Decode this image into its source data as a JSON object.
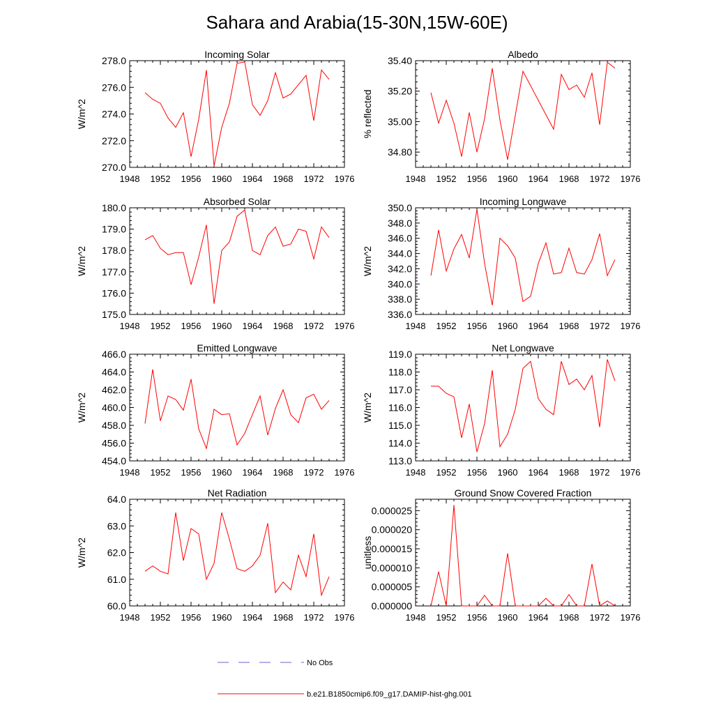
{
  "figure_title": "Sahara and Arabia(15-30N,15W-60E)",
  "legend": {
    "entries": [
      {
        "label": "No Obs",
        "color": "#6666cc",
        "dashed": true
      },
      {
        "label": "b.e21.B1850cmip6.f09_g17.DAMIP-hist-ghg.001",
        "color": "#ff0000",
        "dashed": false
      }
    ]
  },
  "colors": {
    "series": "#ff0000",
    "axis": "#000000",
    "no_obs": "#6666cc"
  },
  "chart_data": [
    {
      "type": "line",
      "title": "Incoming Solar",
      "xlabel": "",
      "ylabel": "W/m^2",
      "xlim": [
        1948,
        1976
      ],
      "ylim": [
        270.0,
        278.0
      ],
      "xticks": [
        1948,
        1952,
        1956,
        1960,
        1964,
        1968,
        1972,
        1976
      ],
      "yticks": [
        270.0,
        272.0,
        274.0,
        276.0,
        278.0
      ],
      "decimals": 1,
      "x": [
        1950,
        1951,
        1952,
        1953,
        1954,
        1955,
        1956,
        1957,
        1958,
        1959,
        1960,
        1961,
        1962,
        1963,
        1964,
        1965,
        1966,
        1967,
        1968,
        1969,
        1970,
        1971,
        1972,
        1973,
        1974
      ],
      "series": [
        {
          "values": [
            275.6,
            275.1,
            274.8,
            273.7,
            273.0,
            274.1,
            270.8,
            273.6,
            277.3,
            270.1,
            273.0,
            274.8,
            277.8,
            277.9,
            274.7,
            273.9,
            275.0,
            277.1,
            275.2,
            275.5,
            276.2,
            276.9,
            273.5,
            277.3,
            276.6
          ]
        }
      ]
    },
    {
      "type": "line",
      "title": "Albedo",
      "xlabel": "",
      "ylabel": "% reflected",
      "xlim": [
        1948,
        1976
      ],
      "ylim": [
        34.7,
        35.4
      ],
      "xticks": [
        1948,
        1952,
        1956,
        1960,
        1964,
        1968,
        1972,
        1976
      ],
      "yticks": [
        34.8,
        35.0,
        35.2,
        35.4
      ],
      "decimals": 2,
      "x": [
        1950,
        1951,
        1952,
        1953,
        1954,
        1955,
        1956,
        1957,
        1958,
        1959,
        1960,
        1962,
        1966,
        1967,
        1968,
        1969,
        1970,
        1971,
        1972,
        1973,
        1974
      ],
      "series": [
        {
          "values": [
            35.19,
            34.99,
            35.14,
            34.99,
            34.77,
            35.06,
            34.8,
            35.02,
            35.35,
            35.01,
            34.75,
            35.33,
            34.95,
            35.31,
            35.21,
            35.24,
            35.16,
            35.32,
            34.98,
            35.39,
            35.35
          ]
        }
      ]
    },
    {
      "type": "line",
      "title": "Absorbed Solar",
      "xlabel": "",
      "ylabel": "W/m^2",
      "xlim": [
        1948,
        1976
      ],
      "ylim": [
        175.0,
        180.0
      ],
      "xticks": [
        1948,
        1952,
        1956,
        1960,
        1964,
        1968,
        1972,
        1976
      ],
      "yticks": [
        175.0,
        176.0,
        177.0,
        178.0,
        179.0,
        180.0
      ],
      "decimals": 1,
      "x": [
        1950,
        1951,
        1952,
        1953,
        1954,
        1955,
        1956,
        1957,
        1958,
        1959,
        1960,
        1961,
        1962,
        1963,
        1964,
        1965,
        1966,
        1967,
        1968,
        1969,
        1970,
        1971,
        1972,
        1973,
        1974
      ],
      "series": [
        {
          "values": [
            178.5,
            178.7,
            178.1,
            177.8,
            177.9,
            177.9,
            176.4,
            177.7,
            179.2,
            175.5,
            178.0,
            178.4,
            179.6,
            179.9,
            178.0,
            177.8,
            178.7,
            179.1,
            178.2,
            178.3,
            179.0,
            178.9,
            177.6,
            179.1,
            178.6
          ]
        }
      ]
    },
    {
      "type": "line",
      "title": "Incoming Longwave",
      "xlabel": "",
      "ylabel": "W/m^2",
      "xlim": [
        1948,
        1976
      ],
      "ylim": [
        336.0,
        350.0
      ],
      "xticks": [
        1948,
        1952,
        1956,
        1960,
        1964,
        1968,
        1972,
        1976
      ],
      "yticks": [
        336.0,
        338.0,
        340.0,
        342.0,
        344.0,
        346.0,
        348.0,
        350.0
      ],
      "decimals": 1,
      "x": [
        1950,
        1951,
        1952,
        1953,
        1954,
        1955,
        1956,
        1957,
        1958,
        1959,
        1960,
        1961,
        1962,
        1963,
        1964,
        1965,
        1966,
        1967,
        1968,
        1969,
        1970,
        1971,
        1972,
        1973,
        1974
      ],
      "series": [
        {
          "values": [
            341.1,
            347.1,
            341.7,
            344.6,
            346.5,
            343.4,
            349.8,
            342.7,
            337.2,
            346.0,
            345.0,
            343.4,
            337.7,
            338.4,
            342.7,
            345.4,
            341.3,
            341.5,
            344.7,
            341.5,
            341.3,
            343.2,
            346.6,
            341.1,
            343.2
          ]
        }
      ]
    },
    {
      "type": "line",
      "title": "Emitted Longwave",
      "xlabel": "",
      "ylabel": "W/m^2",
      "xlim": [
        1948,
        1976
      ],
      "ylim": [
        454.0,
        466.0
      ],
      "xticks": [
        1948,
        1952,
        1956,
        1960,
        1964,
        1968,
        1972,
        1976
      ],
      "yticks": [
        454.0,
        456.0,
        458.0,
        460.0,
        462.0,
        464.0,
        466.0
      ],
      "decimals": 1,
      "x": [
        1950,
        1951,
        1952,
        1953,
        1954,
        1955,
        1956,
        1957,
        1958,
        1959,
        1960,
        1961,
        1962,
        1963,
        1964,
        1965,
        1966,
        1967,
        1968,
        1969,
        1970,
        1971,
        1972,
        1973,
        1974
      ],
      "series": [
        {
          "values": [
            458.2,
            464.3,
            458.5,
            461.3,
            460.9,
            459.7,
            463.2,
            457.6,
            455.4,
            459.8,
            459.2,
            459.3,
            455.8,
            457.1,
            459.2,
            461.3,
            456.9,
            459.9,
            462.0,
            459.2,
            458.3,
            461.1,
            461.5,
            459.8,
            460.8
          ]
        }
      ]
    },
    {
      "type": "line",
      "title": "Net Longwave",
      "xlabel": "",
      "ylabel": "W/m^2",
      "xlim": [
        1948,
        1976
      ],
      "ylim": [
        113.0,
        119.0
      ],
      "xticks": [
        1948,
        1952,
        1956,
        1960,
        1964,
        1968,
        1972,
        1976
      ],
      "yticks": [
        113.0,
        114.0,
        115.0,
        116.0,
        117.0,
        118.0,
        119.0
      ],
      "decimals": 1,
      "x": [
        1950,
        1951,
        1952,
        1953,
        1954,
        1955,
        1956,
        1957,
        1958,
        1959,
        1960,
        1961,
        1962,
        1963,
        1964,
        1965,
        1966,
        1967,
        1968,
        1969,
        1970,
        1971,
        1972,
        1973,
        1974
      ],
      "series": [
        {
          "values": [
            117.2,
            117.2,
            116.8,
            116.6,
            114.3,
            116.2,
            113.5,
            115.1,
            118.1,
            113.8,
            114.5,
            115.9,
            118.2,
            118.6,
            116.5,
            115.9,
            115.6,
            118.6,
            117.3,
            117.6,
            117.0,
            117.8,
            114.9,
            118.7,
            117.5
          ]
        }
      ]
    },
    {
      "type": "line",
      "title": "Net Radiation",
      "xlabel": "",
      "ylabel": "W/m^2",
      "xlim": [
        1948,
        1976
      ],
      "ylim": [
        60.0,
        64.0
      ],
      "xticks": [
        1948,
        1952,
        1956,
        1960,
        1964,
        1968,
        1972,
        1976
      ],
      "yticks": [
        60.0,
        61.0,
        62.0,
        63.0,
        64.0
      ],
      "decimals": 1,
      "x": [
        1950,
        1951,
        1952,
        1953,
        1954,
        1955,
        1956,
        1957,
        1958,
        1959,
        1960,
        1961,
        1962,
        1963,
        1964,
        1965,
        1966,
        1967,
        1968,
        1969,
        1970,
        1971,
        1972,
        1973,
        1974
      ],
      "series": [
        {
          "values": [
            61.3,
            61.5,
            61.3,
            61.2,
            63.5,
            61.7,
            62.9,
            62.7,
            61.0,
            61.6,
            63.5,
            62.5,
            61.4,
            61.3,
            61.5,
            61.9,
            63.1,
            60.5,
            60.9,
            60.6,
            61.9,
            61.1,
            62.7,
            60.4,
            61.1
          ]
        }
      ]
    },
    {
      "type": "line",
      "title": "Ground Snow Covered Fraction",
      "xlabel": "",
      "ylabel": "unitless",
      "xlim": [
        1948,
        1976
      ],
      "ylim": [
        0.0,
        2.8e-05
      ],
      "xticks": [
        1948,
        1952,
        1956,
        1960,
        1964,
        1968,
        1972,
        1976
      ],
      "yticks": [
        0.0,
        5e-06,
        1e-05,
        1.5e-05,
        2e-05,
        2.5e-05
      ],
      "decimals": 6,
      "x": [
        1950,
        1951,
        1952,
        1953,
        1954,
        1955,
        1956,
        1957,
        1958,
        1959,
        1960,
        1961,
        1962,
        1963,
        1964,
        1965,
        1966,
        1967,
        1968,
        1969,
        1970,
        1971,
        1972,
        1973,
        1974
      ],
      "series": [
        {
          "values": [
            0.0,
            9e-06,
            0.0,
            2.65e-05,
            0.0,
            0.0,
            0.0,
            2.8e-06,
            0.0,
            0.0,
            1.38e-05,
            0.0,
            0.0,
            0.0,
            0.0,
            2e-06,
            0.0,
            0.0,
            3e-06,
            0.0,
            0.0,
            1.1e-05,
            0.0,
            1.3e-06,
            0.0
          ]
        }
      ]
    }
  ]
}
